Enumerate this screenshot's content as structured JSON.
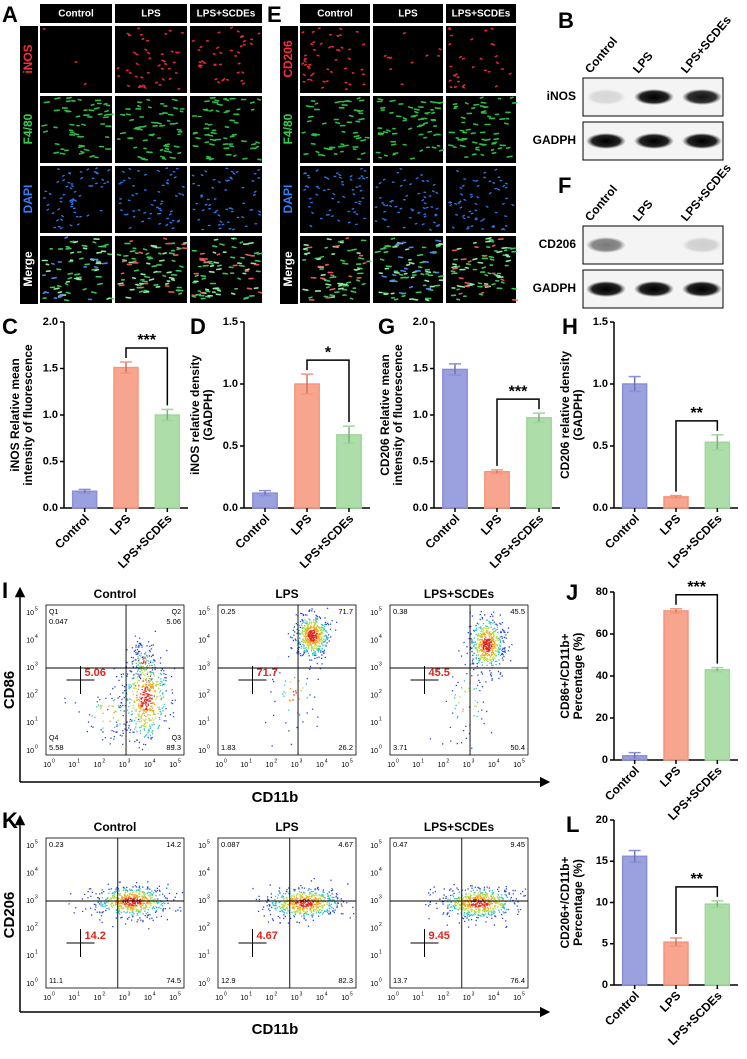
{
  "microscopy": [
    {
      "letter": "A",
      "columns": [
        "Control",
        "LPS",
        "LPS+SCDEs"
      ],
      "rows": [
        {
          "label": "iNOS",
          "color": "#ff2a3a"
        },
        {
          "label": "F4/80",
          "color": "#2fd04f"
        },
        {
          "label": "DAPI",
          "color": "#2f7fff"
        },
        {
          "label": "Merge",
          "color": "#ffffff"
        }
      ]
    },
    {
      "letter": "E",
      "columns": [
        "Control",
        "LPS",
        "LPS+SCDEs"
      ],
      "rows": [
        {
          "label": "CD206",
          "color": "#ff2a3a"
        },
        {
          "label": "F4/80",
          "color": "#2fd04f"
        },
        {
          "label": "DAPI",
          "color": "#2f7fff"
        },
        {
          "label": "Merge",
          "color": "#ffffff"
        }
      ]
    }
  ],
  "blots": [
    {
      "letter": "B",
      "columns": [
        "Control",
        "LPS",
        "LPS+SCDEs"
      ],
      "rows": [
        "iNOS",
        "GADPH"
      ]
    },
    {
      "letter": "F",
      "columns": [
        "Control",
        "LPS",
        "LPS+SCDEs"
      ],
      "rows": [
        "CD206",
        "GADPH"
      ]
    }
  ],
  "flow": [
    {
      "letter": "I",
      "y_label": "CD86",
      "x_label": "CD11b",
      "tick_base": "10",
      "tick_exponents": [
        "0",
        "1",
        "2",
        "3",
        "4",
        "5"
      ],
      "plots": [
        {
          "title": "Control",
          "quadrant_names": [
            "Q1",
            "Q2",
            "Q4",
            "Q3"
          ],
          "quadrants": [
            "0.047",
            "5.06",
            "5.58",
            "89.3"
          ],
          "center": "5.06"
        },
        {
          "title": "LPS",
          "quadrants": [
            "0.25",
            "71.7",
            "1.83",
            "26.2"
          ],
          "center": "71.7"
        },
        {
          "title": "LPS+SCDEs",
          "quadrants": [
            "0.38",
            "45.5",
            "3.71",
            "50.4"
          ],
          "center": "45.5"
        }
      ]
    },
    {
      "letter": "K",
      "y_label": "CD206",
      "x_label": "CD11b",
      "tick_base": "10",
      "tick_exponents": [
        "0",
        "1",
        "2",
        "3",
        "4",
        "5"
      ],
      "plots": [
        {
          "title": "Control",
          "quadrants": [
            "0.23",
            "14.2",
            "11.1",
            "74.5"
          ],
          "center": "14.2"
        },
        {
          "title": "LPS",
          "quadrants": [
            "0.087",
            "4.67",
            "12.9",
            "82.3"
          ],
          "center": "4.67"
        },
        {
          "title": "LPS+SCDEs",
          "quadrants": [
            "0.47",
            "9.45",
            "13.7",
            "76.4"
          ],
          "center": "9.45"
        }
      ]
    }
  ],
  "chart_data": [
    {
      "type": "bar",
      "panel_label": "C",
      "ylabel": [
        "iNOS Relative mean",
        "intensity of fluorescence"
      ],
      "categories": [
        "Control",
        "LPS",
        "LPS+SCDEs"
      ],
      "values": [
        0.18,
        1.51,
        1.0
      ],
      "errors": [
        0.02,
        0.06,
        0.06
      ],
      "colors": [
        "#8a8fd8",
        "#f7957b",
        "#9fd89b"
      ],
      "ylim": [
        0,
        2.0
      ],
      "yticks": [
        {
          "value": 0,
          "label": "0.0"
        },
        {
          "value": 0.5,
          "label": "0.5"
        },
        {
          "value": 1,
          "label": "1.0"
        },
        {
          "value": 1.5,
          "label": "1.5"
        },
        {
          "value": 2,
          "label": "2.0"
        }
      ],
      "significance": {
        "label": "***",
        "between": [
          "LPS",
          "LPS+SCDEs"
        ]
      }
    },
    {
      "type": "bar",
      "panel_label": "D",
      "ylabel": [
        "iNOS relative density",
        "(GADPH)"
      ],
      "categories": [
        "Control",
        "LPS",
        "LPS+SCDEs"
      ],
      "values": [
        0.12,
        1.0,
        0.59
      ],
      "errors": [
        0.02,
        0.08,
        0.07
      ],
      "colors": [
        "#8a8fd8",
        "#f7957b",
        "#9fd89b"
      ],
      "ylim": [
        0,
        1.5
      ],
      "yticks": [
        {
          "value": 0,
          "label": "0.0"
        },
        {
          "value": 0.5,
          "label": "0.5"
        },
        {
          "value": 1,
          "label": "1.0"
        },
        {
          "value": 1.5,
          "label": "1.5"
        }
      ],
      "significance": {
        "label": "*",
        "between": [
          "LPS",
          "LPS+SCDEs"
        ]
      }
    },
    {
      "type": "bar",
      "panel_label": "G",
      "ylabel": [
        "CD206 Relative mean",
        "intensity of fluorescence"
      ],
      "categories": [
        "Control",
        "LPS",
        "LPS+SCDEs"
      ],
      "values": [
        1.49,
        0.39,
        0.97
      ],
      "errors": [
        0.06,
        0.02,
        0.05
      ],
      "colors": [
        "#8a8fd8",
        "#f7957b",
        "#9fd89b"
      ],
      "ylim": [
        0,
        2.0
      ],
      "yticks": [
        {
          "value": 0,
          "label": "0.0"
        },
        {
          "value": 0.5,
          "label": "0.5"
        },
        {
          "value": 1,
          "label": "1.0"
        },
        {
          "value": 1.5,
          "label": "1.5"
        },
        {
          "value": 2,
          "label": "2.0"
        }
      ],
      "significance": {
        "label": "***",
        "between": [
          "LPS",
          "LPS+SCDEs"
        ]
      }
    },
    {
      "type": "bar",
      "panel_label": "H",
      "ylabel": [
        "CD206 relative density",
        "(GADPH)"
      ],
      "categories": [
        "Control",
        "LPS",
        "LPS+SCDEs"
      ],
      "values": [
        1.0,
        0.09,
        0.53
      ],
      "errors": [
        0.06,
        0.01,
        0.06
      ],
      "colors": [
        "#8a8fd8",
        "#f7957b",
        "#9fd89b"
      ],
      "ylim": [
        0,
        1.5
      ],
      "yticks": [
        {
          "value": 0,
          "label": "0.0"
        },
        {
          "value": 0.5,
          "label": "0.5"
        },
        {
          "value": 1,
          "label": "1.0"
        },
        {
          "value": 1.5,
          "label": "1.5"
        }
      ],
      "significance": {
        "label": "**",
        "between": [
          "LPS",
          "LPS+SCDEs"
        ]
      }
    },
    {
      "type": "bar",
      "panel_label": "J",
      "ylabel": [
        "CD86+/CD11b+",
        "Percentage (%)"
      ],
      "categories": [
        "Control",
        "LPS",
        "LPS+SCDEs"
      ],
      "values": [
        2,
        71,
        43
      ],
      "errors": [
        1.5,
        1,
        1
      ],
      "colors": [
        "#8a8fd8",
        "#f7957b",
        "#9fd89b"
      ],
      "ylim": [
        0,
        80
      ],
      "yticks": [
        0,
        20,
        40,
        60,
        80
      ],
      "significance": {
        "label": "***",
        "between": [
          "LPS",
          "LPS+SCDEs"
        ]
      }
    },
    {
      "type": "bar",
      "panel_label": "L",
      "ylabel": [
        "CD206+/CD11b+",
        "Percentage (%)"
      ],
      "categories": [
        "Control",
        "LPS",
        "LPS+SCDEs"
      ],
      "values": [
        15.6,
        5.2,
        9.8
      ],
      "errors": [
        0.7,
        0.5,
        0.4
      ],
      "colors": [
        "#8a8fd8",
        "#f7957b",
        "#9fd89b"
      ],
      "ylim": [
        0,
        20
      ],
      "yticks": [
        0,
        5,
        10,
        15,
        20
      ],
      "significance": {
        "label": "**",
        "between": [
          "LPS",
          "LPS+SCDEs"
        ]
      }
    }
  ]
}
